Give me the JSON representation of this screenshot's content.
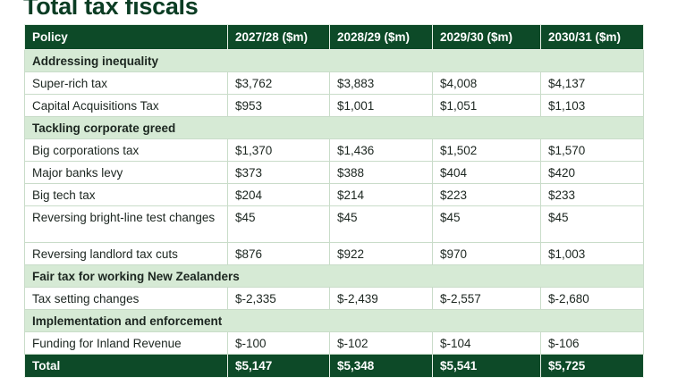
{
  "title": "Total tax fiscals",
  "table": {
    "headers": [
      "Policy",
      "2027/28 ($m)",
      "2028/29 ($m)",
      "2029/30 ($m)",
      "2030/31 ($m)"
    ],
    "sections": [
      {
        "label": "Addressing inequality",
        "rows": [
          {
            "policy": "Super-rich tax",
            "values": [
              "$3,762",
              "$3,883",
              "$4,008",
              "$4,137"
            ]
          },
          {
            "policy": "Capital Acquisitions Tax",
            "values": [
              "$953",
              "$1,001",
              "$1,051",
              "$1,103"
            ]
          }
        ]
      },
      {
        "label": "Tackling corporate greed",
        "rows": [
          {
            "policy": "Big corporations tax",
            "values": [
              "$1,370",
              "$1,436",
              "$1,502",
              "$1,570"
            ]
          },
          {
            "policy": "Major banks levy",
            "values": [
              "$373",
              "$388",
              "$404",
              "$420"
            ]
          },
          {
            "policy": "Big tech tax",
            "values": [
              "$204",
              "$214",
              "$223",
              "$233"
            ]
          },
          {
            "policy": "Reversing bright-line test changes",
            "values": [
              "$45",
              "$45",
              "$45",
              "$45"
            ]
          },
          {
            "policy": "Reversing landlord tax cuts",
            "values": [
              "$876",
              "$922",
              "$970",
              "$1,003"
            ]
          }
        ]
      },
      {
        "label": "Fair tax for working New Zealanders",
        "rows": [
          {
            "policy": "Tax setting changes",
            "values": [
              "$-2,335",
              "$-2,439",
              "$-2,557",
              "$-2,680"
            ]
          }
        ]
      },
      {
        "label": "Implementation and enforcement",
        "rows": [
          {
            "policy": "Funding for Inland Revenue",
            "values": [
              "$-100",
              "$-102",
              "$-104",
              "$-106"
            ]
          }
        ]
      }
    ],
    "total": {
      "label": "Total",
      "values": [
        "$5,147",
        "$5,348",
        "$5,541",
        "$5,725"
      ]
    }
  }
}
